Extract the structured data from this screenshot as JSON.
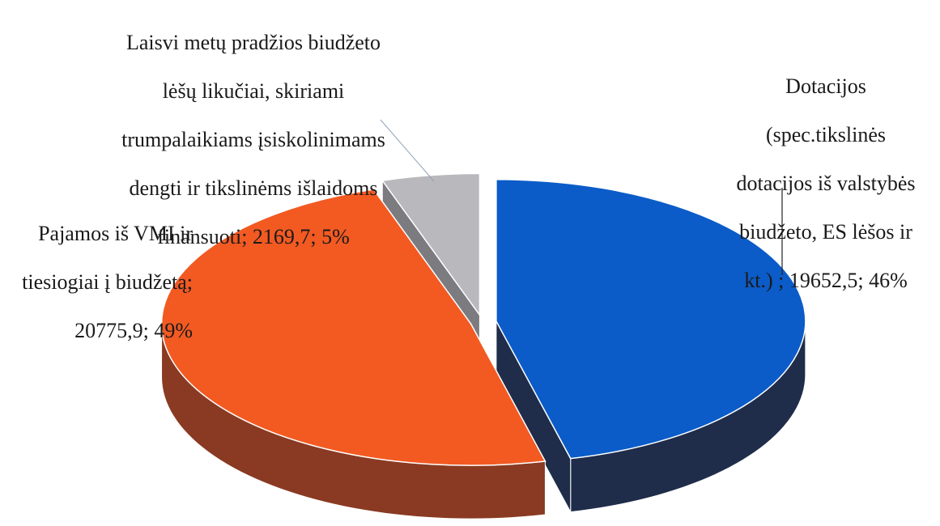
{
  "chart_data": {
    "type": "pie",
    "style": "3d-exploded",
    "categories": [
      "Dotacijos (spec.tikslinės dotacijos iš valstybės biudžeto, ES lėšos ir kt.)",
      "Pajamos iš VMI ir tiesiogiai į biudžetą",
      "Laisvi metų pradžios biudžeto lėšų likučiai, skiriami trumpalaikiams įsiskolinimams dengti ir tikslinėms išlaidoms finansuoti"
    ],
    "values": [
      19652.5,
      20775.9,
      2169.7
    ],
    "percentages": [
      46,
      49,
      5
    ],
    "colors": [
      "#0b5cc8",
      "#f25a22",
      "#b9b9bd"
    ],
    "side_colors": [
      "#1f2d4a",
      "#8a3a22",
      "#7c7c80"
    ],
    "legend": "none",
    "labels": [
      {
        "lines": [
          "Dotacijos",
          "(spec.tikslinės",
          "dotacijos iš valstybės",
          "biudžeto, ES lėšos ir",
          "kt.) ; 19652,5; 46%"
        ]
      },
      {
        "lines": [
          "Pajamos iš VMI ir",
          "tiesiogiai į biudžetą;",
          "20775,9; 49%"
        ]
      },
      {
        "lines": [
          "Laisvi metų pradžios biudžeto",
          "lėšų likučiai, skiriami",
          "trumpalaikiams įsiskolinimams",
          "dengti ir tikslinėms išlaidoms",
          "finansuoti; 2169,7; 5%"
        ]
      }
    ]
  }
}
